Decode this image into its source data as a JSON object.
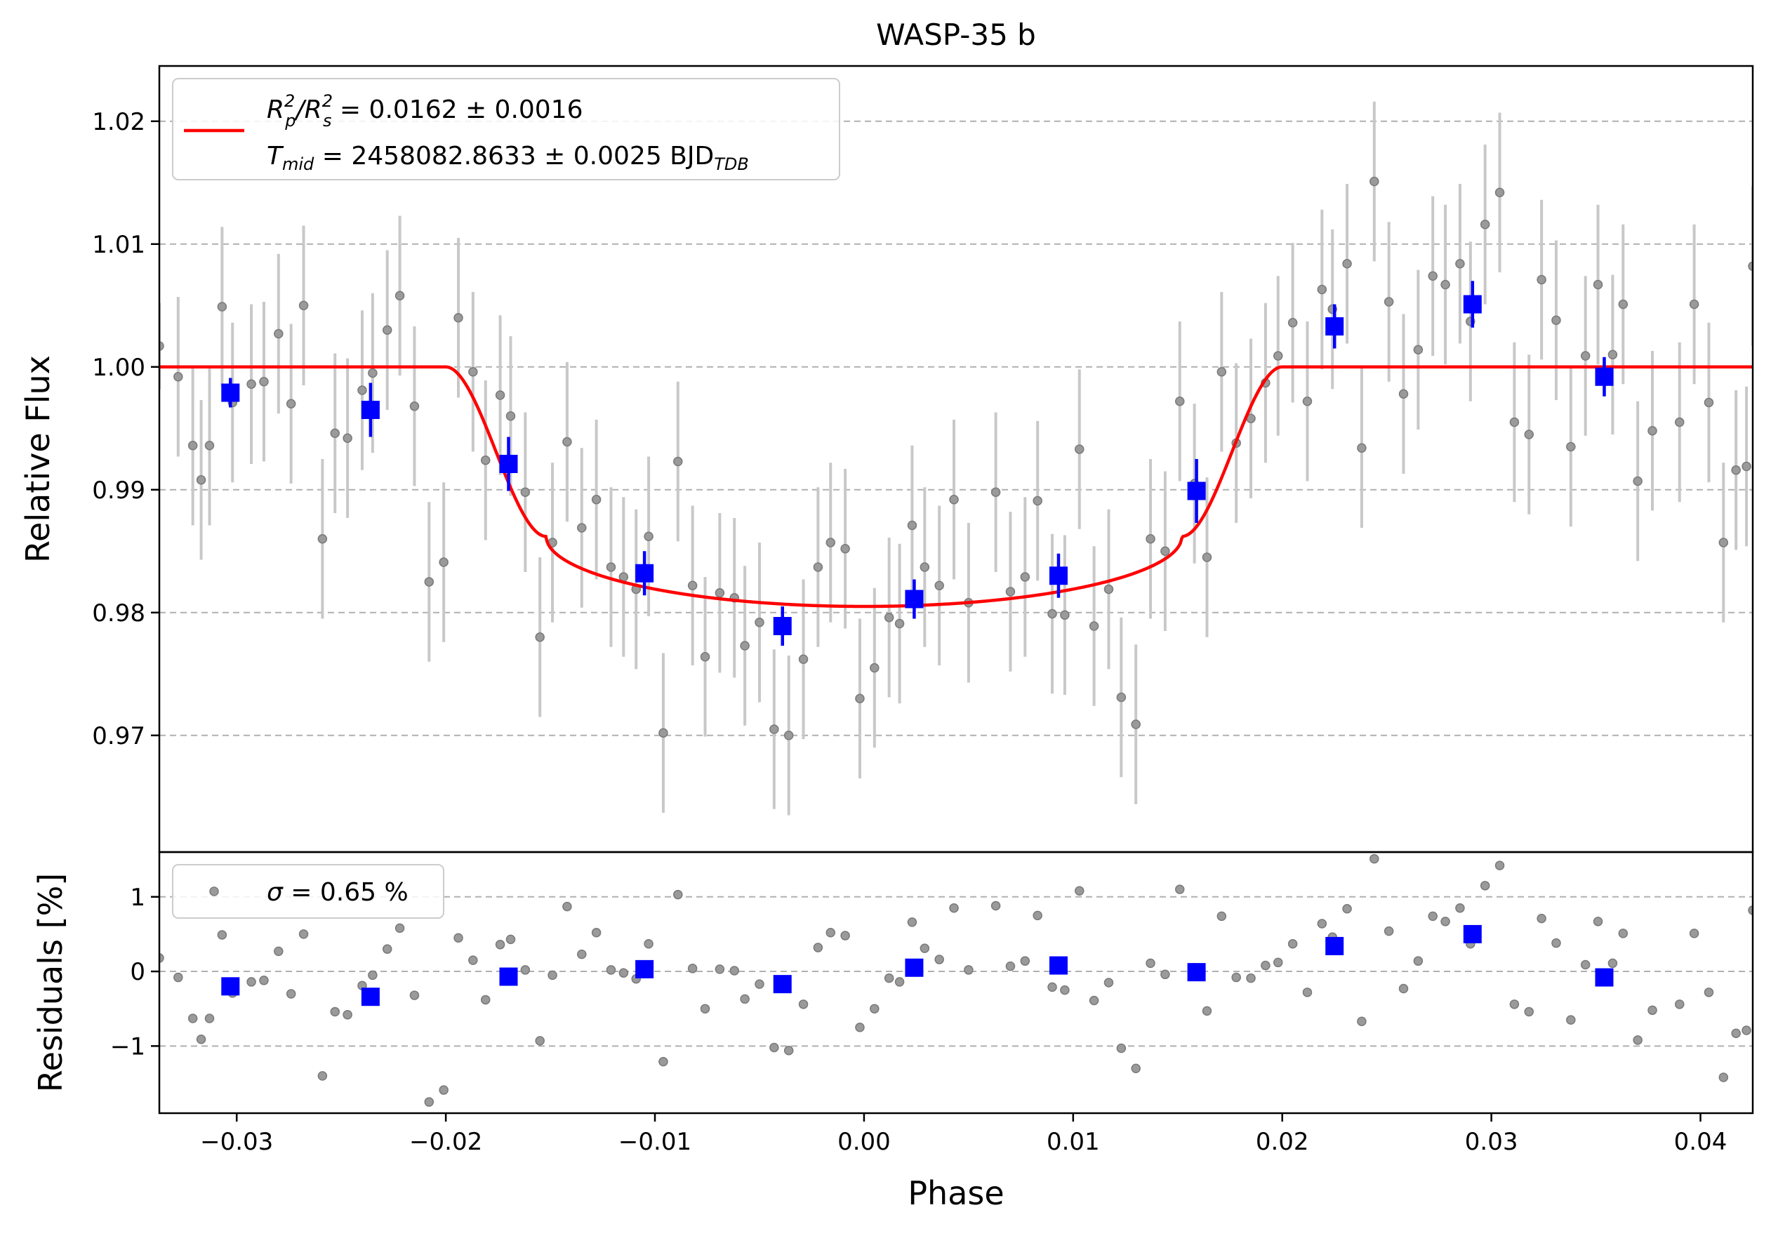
{
  "chart_data": [
    {
      "type": "scatter",
      "panel": "top",
      "title": "WASP-35 b",
      "xlabel": "",
      "ylabel": "Relative Flux",
      "xlim": [
        -0.0337,
        0.0425
      ],
      "ylim": [
        0.9605,
        1.0245
      ],
      "yticks": [
        0.97,
        0.98,
        0.99,
        1.0,
        1.01,
        1.02
      ],
      "ytick_labels": [
        "0.97",
        "0.98",
        "0.99",
        "1.00",
        "1.01",
        "1.02"
      ],
      "grid": "horizontal dashed",
      "legend": {
        "placement": "upper-left",
        "line1_symbol": "R",
        "line1_sub": "p",
        "line1_sup": "2",
        "line1_div": "/R",
        "line1_sub2": "s",
        "line1_sup2": "2",
        "line1_value": " = 0.0162 ± 0.0016",
        "line2_symbol": "T",
        "line2_sub": "mid",
        "line2_value": " = 2458082.8633 ± 0.0025 BJD",
        "line2_unit_sub": "TDB"
      },
      "colors": {
        "raw": "#808080",
        "raw_err": "#c8c8c8",
        "binned": "#0000ff",
        "model": "#ff0000",
        "grid": "#b0b0b0"
      },
      "raw_points": [
        [
          -0.0337,
          1.0017,
          0.0035
        ],
        [
          -0.0328,
          0.9992,
          0.0065
        ],
        [
          -0.0321,
          0.9936,
          0.0065
        ],
        [
          -0.0317,
          0.9908,
          0.0065
        ],
        [
          -0.0313,
          0.9936,
          0.0065
        ],
        [
          -0.0307,
          1.0049,
          0.0065
        ],
        [
          -0.0302,
          0.9971,
          0.0065
        ],
        [
          -0.0293,
          0.9986,
          0.0065
        ],
        [
          -0.0287,
          0.9988,
          0.0065
        ],
        [
          -0.028,
          1.0027,
          0.0065
        ],
        [
          -0.0274,
          0.997,
          0.0065
        ],
        [
          -0.0268,
          1.005,
          0.0065
        ],
        [
          -0.0259,
          0.986,
          0.0065
        ],
        [
          -0.0253,
          0.9946,
          0.0065
        ],
        [
          -0.0247,
          0.9942,
          0.0065
        ],
        [
          -0.024,
          0.9981,
          0.0065
        ],
        [
          -0.0235,
          0.9995,
          0.0065
        ],
        [
          -0.0228,
          1.003,
          0.0065
        ],
        [
          -0.0222,
          1.0058,
          0.0065
        ],
        [
          -0.0215,
          0.9968,
          0.0065
        ],
        [
          -0.0208,
          0.9825,
          0.0065
        ],
        [
          -0.0201,
          0.9841,
          0.0065
        ],
        [
          -0.0194,
          1.004,
          0.0065
        ],
        [
          -0.0187,
          0.9996,
          0.0065
        ],
        [
          -0.0181,
          0.9924,
          0.0065
        ],
        [
          -0.0174,
          0.9977,
          0.0065
        ],
        [
          -0.0169,
          0.996,
          0.0065
        ],
        [
          -0.0162,
          0.9898,
          0.0065
        ],
        [
          -0.0155,
          0.978,
          0.0065
        ],
        [
          -0.0149,
          0.9857,
          0.0065
        ],
        [
          -0.0142,
          0.9939,
          0.0065
        ],
        [
          -0.0135,
          0.9869,
          0.0065
        ],
        [
          -0.0128,
          0.9892,
          0.0065
        ],
        [
          -0.0121,
          0.9837,
          0.0065
        ],
        [
          -0.0115,
          0.9829,
          0.0065
        ],
        [
          -0.0109,
          0.9819,
          0.0065
        ],
        [
          -0.0103,
          0.9862,
          0.0065
        ],
        [
          -0.0096,
          0.9702,
          0.0065
        ],
        [
          -0.0089,
          0.9923,
          0.0065
        ],
        [
          -0.0082,
          0.9822,
          0.0065
        ],
        [
          -0.0076,
          0.9764,
          0.0065
        ],
        [
          -0.0069,
          0.9816,
          0.0065
        ],
        [
          -0.0062,
          0.9812,
          0.0065
        ],
        [
          -0.0057,
          0.9773,
          0.0065
        ],
        [
          -0.005,
          0.9792,
          0.0065
        ],
        [
          -0.0043,
          0.9705,
          0.0065
        ],
        [
          -0.0036,
          0.97,
          0.0065
        ],
        [
          -0.0029,
          0.9762,
          0.0065
        ],
        [
          -0.0022,
          0.9837,
          0.0065
        ],
        [
          -0.0016,
          0.9857,
          0.0065
        ],
        [
          -0.0009,
          0.9852,
          0.0065
        ],
        [
          -0.0002,
          0.973,
          0.0065
        ],
        [
          0.0005,
          0.9755,
          0.0065
        ],
        [
          0.0012,
          0.9796,
          0.0065
        ],
        [
          0.0017,
          0.9791,
          0.0065
        ],
        [
          0.0023,
          0.9871,
          0.0065
        ],
        [
          0.0029,
          0.9837,
          0.0065
        ],
        [
          0.0036,
          0.9822,
          0.0065
        ],
        [
          0.0043,
          0.9892,
          0.0065
        ],
        [
          0.005,
          0.9808,
          0.0065
        ],
        [
          0.0063,
          0.9898,
          0.0065
        ],
        [
          0.007,
          0.9817,
          0.0065
        ],
        [
          0.0077,
          0.9829,
          0.0065
        ],
        [
          0.0083,
          0.9891,
          0.0065
        ],
        [
          0.009,
          0.9799,
          0.0065
        ],
        [
          0.0096,
          0.9798,
          0.0065
        ],
        [
          0.0103,
          0.9933,
          0.0065
        ],
        [
          0.011,
          0.9789,
          0.0065
        ],
        [
          0.0117,
          0.9819,
          0.0065
        ],
        [
          0.0123,
          0.9731,
          0.0065
        ],
        [
          0.013,
          0.9709,
          0.0065
        ],
        [
          0.0137,
          0.986,
          0.0065
        ],
        [
          0.0144,
          0.985,
          0.0065
        ],
        [
          0.0151,
          0.9972,
          0.0065
        ],
        [
          0.0158,
          0.9905,
          0.0065
        ],
        [
          0.0164,
          0.9845,
          0.0065
        ],
        [
          0.0171,
          0.9996,
          0.0065
        ],
        [
          0.0178,
          0.9938,
          0.0065
        ],
        [
          0.0185,
          0.9958,
          0.0065
        ],
        [
          0.0192,
          0.9987,
          0.0065
        ],
        [
          0.0198,
          1.0009,
          0.0065
        ],
        [
          0.0205,
          1.0036,
          0.0065
        ],
        [
          0.0212,
          0.9972,
          0.0065
        ],
        [
          0.0219,
          1.0063,
          0.0065
        ],
        [
          0.0224,
          1.0047,
          0.0065
        ],
        [
          0.0231,
          1.0084,
          0.0065
        ],
        [
          0.0238,
          0.9934,
          0.0065
        ],
        [
          0.0244,
          1.0151,
          0.0065
        ],
        [
          0.0251,
          1.0053,
          0.0065
        ],
        [
          0.0258,
          0.9978,
          0.0065
        ],
        [
          0.0265,
          1.0014,
          0.0065
        ],
        [
          0.0272,
          1.0074,
          0.0065
        ],
        [
          0.0278,
          1.0067,
          0.0065
        ],
        [
          0.0285,
          1.0084,
          0.0065
        ],
        [
          0.029,
          1.0037,
          0.0065
        ],
        [
          0.0297,
          1.0116,
          0.0065
        ],
        [
          0.0304,
          1.0142,
          0.0065
        ],
        [
          0.0311,
          0.9955,
          0.0065
        ],
        [
          0.0318,
          0.9945,
          0.0065
        ],
        [
          0.0324,
          1.0071,
          0.0065
        ],
        [
          0.0331,
          1.0038,
          0.0065
        ],
        [
          0.0338,
          0.9935,
          0.0065
        ],
        [
          0.0345,
          1.0009,
          0.0065
        ],
        [
          0.0351,
          1.0067,
          0.0065
        ],
        [
          0.0358,
          1.001,
          0.0065
        ],
        [
          0.0363,
          1.0051,
          0.0065
        ],
        [
          0.037,
          0.9907,
          0.0065
        ],
        [
          0.0377,
          0.9948,
          0.0065
        ],
        [
          0.039,
          0.9955,
          0.0065
        ],
        [
          0.0397,
          1.0051,
          0.0065
        ],
        [
          0.0404,
          0.9971,
          0.0065
        ],
        [
          0.0411,
          0.9857,
          0.0065
        ],
        [
          0.0417,
          0.9916,
          0.0065
        ],
        [
          0.0422,
          0.9919,
          0.0065
        ],
        [
          0.0425,
          1.0082,
          0.0065
        ]
      ],
      "binned_points": [
        [
          -0.0303,
          0.9979,
          0.0012
        ],
        [
          -0.0236,
          0.9965,
          0.0022
        ],
        [
          -0.017,
          0.9921,
          0.0022
        ],
        [
          -0.0105,
          0.9832,
          0.0018
        ],
        [
          -0.0039,
          0.9789,
          0.0016
        ],
        [
          0.0024,
          0.9811,
          0.0016
        ],
        [
          0.0093,
          0.983,
          0.0018
        ],
        [
          0.0159,
          0.9899,
          0.0026
        ],
        [
          0.0225,
          1.0033,
          0.0018
        ],
        [
          0.0291,
          1.0051,
          0.0019
        ],
        [
          0.0354,
          0.9992,
          0.0016
        ]
      ],
      "model": {
        "depth": 0.0162,
        "contact1": -0.02,
        "contact2": -0.0152,
        "contact3": 0.0152,
        "contact4": 0.02,
        "bottom_center": 0.9805
      }
    },
    {
      "type": "scatter",
      "panel": "bottom",
      "xlabel": "Phase",
      "ylabel": "Residuals [%]",
      "xlim": [
        -0.0337,
        0.0425
      ],
      "ylim": [
        -1.9,
        1.6
      ],
      "yticks": [
        -1,
        0,
        1
      ],
      "ytick_labels": [
        "−1",
        "0",
        "1"
      ],
      "xticks": [
        -0.03,
        -0.02,
        -0.01,
        0.0,
        0.01,
        0.02,
        0.03,
        0.04
      ],
      "xtick_labels": [
        "−0.03",
        "−0.02",
        "−0.01",
        "0.00",
        "0.01",
        "0.02",
        "0.03",
        "0.04"
      ],
      "grid": "horizontal dashed",
      "legend": {
        "placement": "upper-left",
        "symbol": "σ",
        "value": " = 0.65 %"
      },
      "raw_points": [
        [
          -0.0337,
          0.18
        ],
        [
          -0.0328,
          -0.08
        ],
        [
          -0.0321,
          -0.63
        ],
        [
          -0.0317,
          -0.91
        ],
        [
          -0.0313,
          -0.63
        ],
        [
          -0.0307,
          0.49
        ],
        [
          -0.0302,
          -0.29
        ],
        [
          -0.0293,
          -0.14
        ],
        [
          -0.0287,
          -0.12
        ],
        [
          -0.028,
          0.27
        ],
        [
          -0.0274,
          -0.3
        ],
        [
          -0.0268,
          0.5
        ],
        [
          -0.0259,
          -1.4
        ],
        [
          -0.0253,
          -0.54
        ],
        [
          -0.0247,
          -0.58
        ],
        [
          -0.024,
          -0.19
        ],
        [
          -0.0235,
          -0.05
        ],
        [
          -0.0228,
          0.3
        ],
        [
          -0.0222,
          0.58
        ],
        [
          -0.0215,
          -0.32
        ],
        [
          -0.0208,
          -1.75
        ],
        [
          -0.0201,
          -1.59
        ],
        [
          -0.0194,
          0.45
        ],
        [
          -0.0187,
          0.15
        ],
        [
          -0.0181,
          -0.38
        ],
        [
          -0.0174,
          0.36
        ],
        [
          -0.0169,
          0.43
        ],
        [
          -0.0162,
          0.02
        ],
        [
          -0.0155,
          -0.93
        ],
        [
          -0.0149,
          -0.05
        ],
        [
          -0.0142,
          0.87
        ],
        [
          -0.0135,
          0.23
        ],
        [
          -0.0128,
          0.52
        ],
        [
          -0.0121,
          0.02
        ],
        [
          -0.0115,
          -0.02
        ],
        [
          -0.0109,
          -0.1
        ],
        [
          -0.0103,
          0.37
        ],
        [
          -0.0096,
          -1.21
        ],
        [
          -0.0089,
          1.03
        ],
        [
          -0.0082,
          0.04
        ],
        [
          -0.0076,
          -0.5
        ],
        [
          -0.0069,
          0.03
        ],
        [
          -0.0062,
          0.01
        ],
        [
          -0.0057,
          -0.37
        ],
        [
          -0.005,
          -0.17
        ],
        [
          -0.0043,
          -1.02
        ],
        [
          -0.0036,
          -1.06
        ],
        [
          -0.0029,
          -0.44
        ],
        [
          -0.0022,
          0.32
        ],
        [
          -0.0016,
          0.52
        ],
        [
          -0.0009,
          0.48
        ],
        [
          -0.0002,
          -0.75
        ],
        [
          0.0005,
          -0.5
        ],
        [
          0.0012,
          -0.09
        ],
        [
          0.0017,
          -0.14
        ],
        [
          0.0023,
          0.66
        ],
        [
          0.0029,
          0.31
        ],
        [
          0.0036,
          0.16
        ],
        [
          0.0043,
          0.85
        ],
        [
          0.005,
          0.02
        ],
        [
          0.0063,
          0.88
        ],
        [
          0.007,
          0.07
        ],
        [
          0.0077,
          0.14
        ],
        [
          0.0083,
          0.75
        ],
        [
          0.009,
          -0.21
        ],
        [
          0.0096,
          -0.25
        ],
        [
          0.0103,
          1.08
        ],
        [
          0.011,
          -0.39
        ],
        [
          0.0117,
          -0.15
        ],
        [
          0.0123,
          -1.03
        ],
        [
          0.013,
          -1.3
        ],
        [
          0.0137,
          0.11
        ],
        [
          0.0144,
          -0.04
        ],
        [
          0.0151,
          1.1
        ],
        [
          0.0158,
          0.05
        ],
        [
          0.0164,
          -0.53
        ],
        [
          0.0171,
          0.74
        ],
        [
          0.0178,
          -0.08
        ],
        [
          0.0185,
          -0.09
        ],
        [
          0.0192,
          0.08
        ],
        [
          0.0198,
          0.12
        ],
        [
          0.0205,
          0.37
        ],
        [
          0.0212,
          -0.28
        ],
        [
          0.0219,
          0.64
        ],
        [
          0.0224,
          0.46
        ],
        [
          0.0231,
          0.84
        ],
        [
          0.0238,
          -0.67
        ],
        [
          0.0244,
          1.51
        ],
        [
          0.0251,
          0.54
        ],
        [
          0.0258,
          -0.23
        ],
        [
          0.0265,
          0.14
        ],
        [
          0.0272,
          0.74
        ],
        [
          0.0278,
          0.67
        ],
        [
          0.0285,
          0.85
        ],
        [
          0.029,
          0.37
        ],
        [
          0.0297,
          1.15
        ],
        [
          0.0304,
          1.42
        ],
        [
          0.0311,
          -0.44
        ],
        [
          0.0318,
          -0.54
        ],
        [
          0.0324,
          0.71
        ],
        [
          0.0331,
          0.38
        ],
        [
          0.0338,
          -0.65
        ],
        [
          0.0345,
          0.09
        ],
        [
          0.0351,
          0.67
        ],
        [
          0.0358,
          0.11
        ],
        [
          0.0363,
          0.51
        ],
        [
          0.037,
          -0.92
        ],
        [
          0.0377,
          -0.52
        ],
        [
          0.039,
          -0.44
        ],
        [
          0.0397,
          0.51
        ],
        [
          0.0404,
          -0.28
        ],
        [
          0.0411,
          -1.42
        ],
        [
          0.0417,
          -0.83
        ],
        [
          0.0422,
          -0.79
        ],
        [
          0.0425,
          0.82
        ]
      ],
      "binned_points": [
        [
          -0.0303,
          -0.2
        ],
        [
          -0.0236,
          -0.34
        ],
        [
          -0.017,
          -0.07
        ],
        [
          -0.0105,
          0.03
        ],
        [
          -0.0039,
          -0.17
        ],
        [
          0.0024,
          0.05
        ],
        [
          0.0093,
          0.08
        ],
        [
          0.0159,
          -0.01
        ],
        [
          0.0225,
          0.34
        ],
        [
          0.0291,
          0.5
        ],
        [
          0.0354,
          -0.08
        ]
      ]
    }
  ]
}
